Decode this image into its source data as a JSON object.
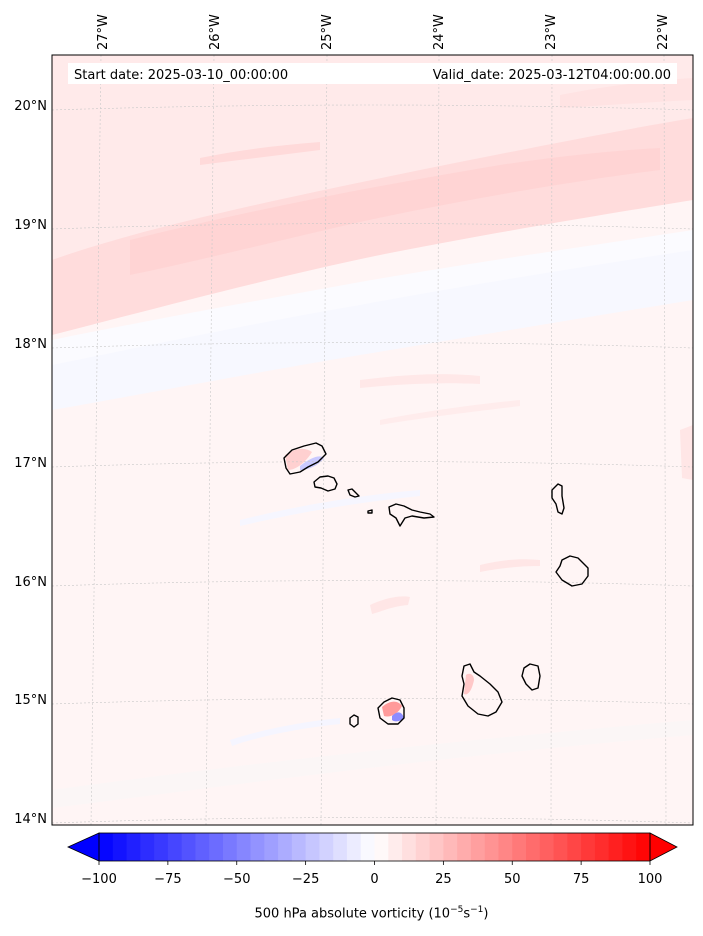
{
  "info": {
    "start_date_text": "Start date: 2025-03-10_00:00:00",
    "valid_date_text": "Valid_date: 2025-03-12T04:00:00.00"
  },
  "map": {
    "lon_ticks": [
      "27°W",
      "26°W",
      "25°W",
      "24°W",
      "23°W",
      "22°W"
    ],
    "lat_ticks": [
      "20°N",
      "19°N",
      "18°N",
      "17°N",
      "16°N",
      "15°N",
      "14°N"
    ],
    "field": "500 hPa absolute vorticity",
    "islands": [
      "Santo Antão",
      "São Vicente",
      "Santa Luzia",
      "São Nicolau",
      "Sal",
      "Boa Vista",
      "Brava",
      "Fogo",
      "Santiago",
      "Maio"
    ]
  },
  "colorbar": {
    "label_text": "500 hPa absolute vorticity (10",
    "label_unit_sup1": "−5",
    "label_unit_mid": "s",
    "label_unit_sup2": "−1",
    "label_close": ")",
    "tick_labels": [
      "−100",
      "−75",
      "−50",
      "−25",
      "0",
      "25",
      "50",
      "75",
      "100"
    ],
    "min": -100,
    "max": 100,
    "colormap": "bwr",
    "extend": "both",
    "low_color": "#0000ff",
    "mid_color": "#ffffff",
    "high_color": "#ff0000"
  }
}
